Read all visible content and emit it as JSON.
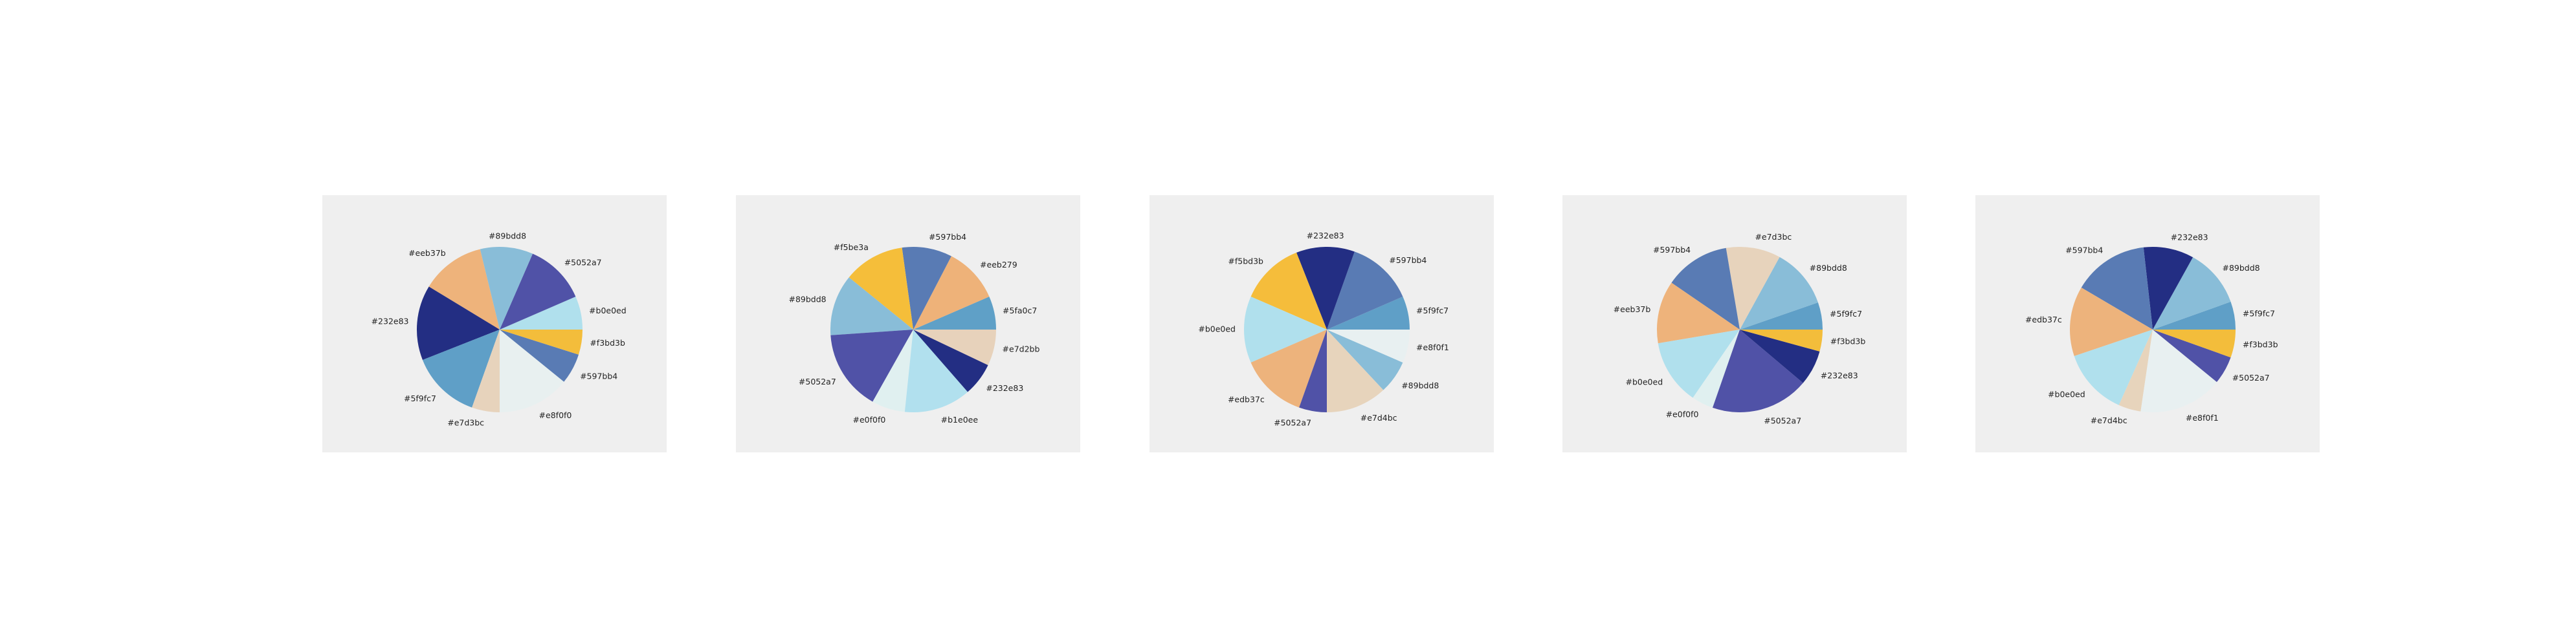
{
  "chart_data": [
    {
      "type": "pie",
      "categories": [
        "#b0e0ed",
        "#5052a7",
        "#89bdd8",
        "#eeb37b",
        "#232e83",
        "#5f9fc7",
        "#e7d3bc",
        "#e8f0f0",
        "#597bb4",
        "#f3bd3b"
      ],
      "values": [
        6.0,
        11.0,
        9.5,
        11.5,
        13.5,
        12.5,
        5.0,
        13.0,
        5.5,
        4.5
      ],
      "colors": [
        "#b0e0ed",
        "#5052a7",
        "#89bdd8",
        "#eeb37b",
        "#232e83",
        "#5f9fc7",
        "#e7d3bc",
        "#e8f0f0",
        "#597bb4",
        "#f3bd3b"
      ],
      "start_angle": 0,
      "direction": "counterclockwise",
      "panel_color": "#efefef"
    },
    {
      "type": "pie",
      "categories": [
        "#5fa0c7",
        "#eeb279",
        "#597bb4",
        "#f5be3a",
        "#89bdd8",
        "#5052a7",
        "#e0f0f0",
        "#b1e0ee",
        "#232e83",
        "#e7d2bb"
      ],
      "values": [
        6.0,
        10.0,
        9.0,
        11.0,
        11.0,
        14.5,
        6.0,
        12.0,
        6.0,
        6.5
      ],
      "colors": [
        "#5fa0c7",
        "#eeb279",
        "#597bb4",
        "#f5be3a",
        "#89bdd8",
        "#5052a7",
        "#e0f0f0",
        "#b1e0ee",
        "#232e83",
        "#e7d2bb"
      ],
      "start_angle": 0,
      "direction": "counterclockwise",
      "panel_color": "#efefef"
    },
    {
      "type": "pie",
      "categories": [
        "#5f9fc7",
        "#597bb4",
        "#232e83",
        "#f5bd3b",
        "#b0e0ed",
        "#edb37c",
        "#5052a7",
        "#e7d4bc",
        "#89bdd8",
        "#e8f0f1"
      ],
      "values": [
        6.0,
        12.0,
        10.5,
        11.5,
        12.0,
        12.0,
        5.0,
        11.0,
        6.0,
        6.0
      ],
      "colors": [
        "#5f9fc7",
        "#597bb4",
        "#232e83",
        "#f5bd3b",
        "#b0e0ed",
        "#edb37c",
        "#5052a7",
        "#e7d4bc",
        "#89bdd8",
        "#e8f0f1"
      ],
      "start_angle": 0,
      "direction": "counterclockwise",
      "panel_color": "#efefef"
    },
    {
      "type": "pie",
      "categories": [
        "#5f9fc7",
        "#89bdd8",
        "#e7d3bc",
        "#597bb4",
        "#eeb37b",
        "#b0e0ed",
        "#e0f0f0",
        "#5052a7",
        "#232e83",
        "#f3bd3b"
      ],
      "values": [
        5.0,
        11.0,
        10.0,
        12.0,
        11.5,
        12.0,
        4.0,
        18.0,
        6.5,
        4.0
      ],
      "colors": [
        "#5f9fc7",
        "#89bdd8",
        "#e7d3bc",
        "#597bb4",
        "#eeb37b",
        "#b0e0ed",
        "#e0f0f0",
        "#5052a7",
        "#232e83",
        "#f3bd3b"
      ],
      "start_angle": 0,
      "direction": "counterclockwise",
      "panel_color": "#efefef"
    },
    {
      "type": "pie",
      "categories": [
        "#5f9fc7",
        "#89bdd8",
        "#232e83",
        "#597bb4",
        "#edb37c",
        "#b0e0ed",
        "#e7d4bc",
        "#e8f0f1",
        "#5052a7",
        "#f3bd3b"
      ],
      "values": [
        5.0,
        10.5,
        9.0,
        13.5,
        12.5,
        12.0,
        4.0,
        15.0,
        5.0,
        5.0
      ],
      "colors": [
        "#5f9fc7",
        "#89bdd8",
        "#232e83",
        "#597bb4",
        "#edb37c",
        "#b0e0ed",
        "#e7d4bc",
        "#e8f0f1",
        "#5052a7",
        "#f3bd3b"
      ],
      "start_angle": 0,
      "direction": "counterclockwise",
      "panel_color": "#efefef"
    }
  ]
}
